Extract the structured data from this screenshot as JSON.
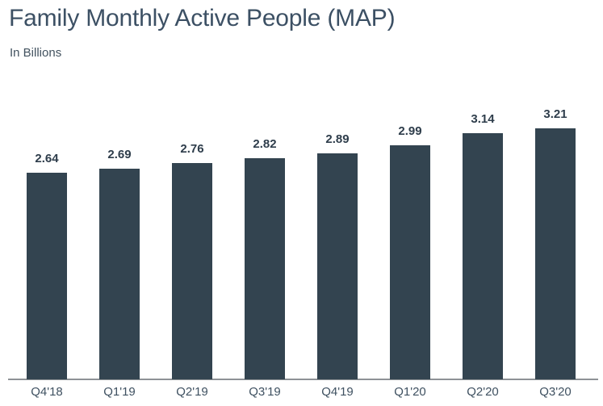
{
  "page": {
    "background": "#ffffff"
  },
  "header": {
    "title": "Family Monthly Active People (MAP)",
    "subtitle": "In Billions"
  },
  "chart_data": {
    "type": "bar",
    "title": "Family Monthly Active People (MAP)",
    "subtitle": "In Billions",
    "unit": "billions of people",
    "categories": [
      "Q4'18",
      "Q1'19",
      "Q2'19",
      "Q3'19",
      "Q4'19",
      "Q1'20",
      "Q2'20",
      "Q3'20"
    ],
    "values": [
      2.64,
      2.69,
      2.76,
      2.82,
      2.89,
      2.99,
      3.14,
      3.21
    ],
    "value_labels": [
      "2.64",
      "2.69",
      "2.76",
      "2.82",
      "2.89",
      "2.99",
      "3.14",
      "3.21"
    ],
    "xlabel": "",
    "ylabel": "In Billions",
    "ylim": [
      0,
      3.5
    ],
    "grid": false,
    "legend": "none",
    "data_labels_shown": true,
    "y_axis_shown": false,
    "bar_color": "#334450",
    "axis_line_color": "#8e9296",
    "value_label_color": "#2e3d4b",
    "category_label_color": "#3f5161",
    "title_color": "#3c5064"
  }
}
